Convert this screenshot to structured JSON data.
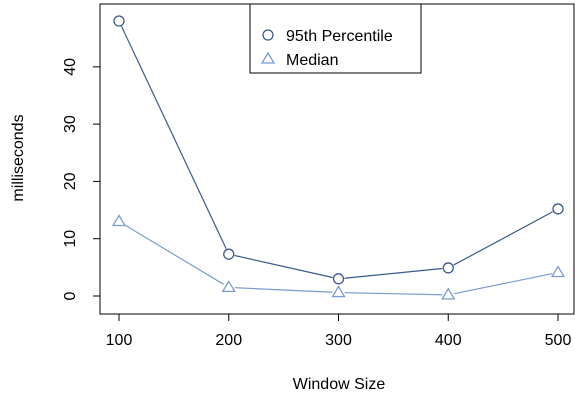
{
  "chart_data": {
    "type": "line",
    "xlabel": "Window Size",
    "ylabel": "milliseconds",
    "x": [
      100,
      200,
      300,
      400,
      500
    ],
    "xticks": [
      100,
      200,
      300,
      400,
      500
    ],
    "yticks": [
      0,
      10,
      20,
      30,
      40
    ],
    "xlim": [
      100,
      500
    ],
    "ylim": [
      0,
      48
    ],
    "grid": false,
    "legend_position": "top-center",
    "series": [
      {
        "name": "95th Percentile",
        "marker": "circle",
        "color": "#3a5a8c",
        "values": [
          48.0,
          7.3,
          3.0,
          4.9,
          15.2
        ]
      },
      {
        "name": "Median",
        "marker": "triangle",
        "color": "#7b9bd1",
        "values": [
          13.0,
          1.5,
          0.6,
          0.2,
          4.1
        ]
      }
    ]
  }
}
